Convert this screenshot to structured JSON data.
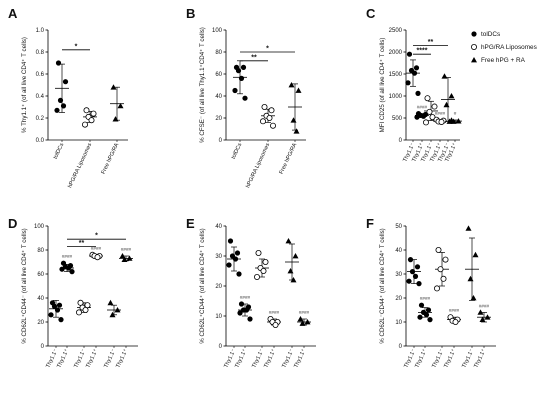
{
  "chart_data": [
    {
      "panel": "A",
      "type": "scatter",
      "ylabel": "% Thy1.1⁺ (of all live CD4⁺ T cells)",
      "ylim": [
        0,
        1.0
      ],
      "yticks": [
        "0.0",
        "0.2",
        "0.4",
        "0.6",
        "0.8",
        "1.0"
      ],
      "ytick_values": [
        0,
        0.2,
        0.4,
        0.6,
        0.8,
        1.0
      ],
      "categories": [
        "tolDCs",
        "hPG/RA Liposomes",
        "Free hPG/RA"
      ],
      "groups": [
        {
          "marker": "filled-circle",
          "mean": 0.47,
          "sd": 0.22,
          "points": [
            0.7,
            0.53,
            0.36,
            0.31,
            0.27
          ]
        },
        {
          "marker": "open-circle",
          "mean": 0.21,
          "sd": 0.05,
          "points": [
            0.27,
            0.24,
            0.21,
            0.18,
            0.14
          ]
        },
        {
          "marker": "filled-triangle",
          "mean": 0.33,
          "sd": 0.15,
          "points": [
            0.48,
            0.31,
            0.19
          ]
        }
      ],
      "brackets": [
        {
          "from": 0,
          "to": 1,
          "y": 0.82,
          "label": "*"
        }
      ]
    },
    {
      "panel": "B",
      "type": "scatter",
      "ylabel": "% CFSE⁻ (of all live Thy1.1⁺CD4⁺ T cells)",
      "ylim": [
        0,
        100
      ],
      "yticks": [
        "0",
        "20",
        "40",
        "60",
        "80",
        "100"
      ],
      "ytick_values": [
        0,
        20,
        40,
        60,
        80,
        100
      ],
      "categories": [
        "tolDCs",
        "hPG/RA Liposomes",
        "Free hPG/RA"
      ],
      "groups": [
        {
          "marker": "filled-circle",
          "mean": 57,
          "sd": 15,
          "points": [
            66,
            66,
            63,
            56,
            45,
            38
          ]
        },
        {
          "marker": "open-circle",
          "mean": 22,
          "sd": 6,
          "points": [
            30,
            27,
            22,
            20,
            17,
            13
          ]
        },
        {
          "marker": "filled-triangle",
          "mean": 30,
          "sd": 21,
          "points": [
            50,
            45,
            18,
            8
          ]
        }
      ],
      "brackets": [
        {
          "from": 0,
          "to": 1,
          "y": 72,
          "label": "**"
        },
        {
          "from": 0,
          "to": 2,
          "y": 80,
          "label": "*"
        }
      ]
    },
    {
      "panel": "C",
      "type": "scatter",
      "ylabel": "MFI CD25 (of all live CD4⁺ T cells)",
      "ylim": [
        0,
        2500
      ],
      "yticks": [
        "0",
        "500",
        "1000",
        "1500",
        "2000",
        "2500"
      ],
      "ytick_values": [
        0,
        500,
        1000,
        1500,
        2000,
        2500
      ],
      "categories": [
        "Thy1.1⁻",
        "Thy1.1⁺",
        "Thy1.1⁻",
        "Thy1.1⁺",
        "Thy1.1⁻",
        "Thy1.1⁺"
      ],
      "groups": [
        {
          "marker": "filled-circle",
          "mean": 1520,
          "sd": 300,
          "points": [
            1950,
            1640,
            1580,
            1520,
            1300,
            1060
          ],
          "hash": ""
        },
        {
          "marker": "filled-circle",
          "mean": 560,
          "sd": 40,
          "points": [
            600,
            580,
            560,
            540,
            520
          ],
          "hash": "####"
        },
        {
          "marker": "open-circle",
          "mean": 660,
          "sd": 220,
          "points": [
            950,
            760,
            640,
            520,
            400
          ],
          "hash": ""
        },
        {
          "marker": "open-circle",
          "mean": 430,
          "sd": 25,
          "points": [
            460,
            440,
            420,
            410
          ],
          "hash": "####"
        },
        {
          "marker": "filled-triangle",
          "mean": 920,
          "sd": 500,
          "points": [
            1450,
            1000,
            800,
            420
          ],
          "hash": ""
        },
        {
          "marker": "filled-triangle",
          "mean": 430,
          "sd": 25,
          "points": [
            450,
            430,
            420
          ],
          "hash": "#"
        }
      ],
      "brackets": [
        {
          "from": 0,
          "to": 2,
          "y": 1950,
          "label": "****"
        },
        {
          "from": 0,
          "to": 4,
          "y": 2150,
          "label": "**"
        }
      ],
      "legend": {
        "placement": "right",
        "entries": [
          {
            "marker": "filled-circle",
            "label": "tolDCs"
          },
          {
            "marker": "open-circle",
            "label": "hPG/RA Liposomes"
          },
          {
            "marker": "filled-triangle",
            "label": "Free hPG + RA"
          }
        ]
      }
    },
    {
      "panel": "D",
      "type": "scatter",
      "ylabel": "% CD62L⁺CD44⁻ (of all live CD4⁺ T cells)",
      "ylim": [
        0,
        100
      ],
      "yticks": [
        "0",
        "20",
        "40",
        "60",
        "80",
        "100"
      ],
      "ytick_values": [
        0,
        20,
        40,
        60,
        80,
        100
      ],
      "categories": [
        "Thy1.1⁻",
        "Thy1.1⁺",
        "Thy1.1⁻",
        "Thy1.1⁺",
        "Thy1.1⁻",
        "Thy1.1⁺"
      ],
      "groups": [
        {
          "marker": "filled-circle",
          "mean": 31,
          "sd": 7,
          "points": [
            36,
            34,
            33,
            30,
            26,
            22
          ],
          "hash": ""
        },
        {
          "marker": "filled-circle",
          "mean": 65,
          "sd": 3,
          "points": [
            69,
            67,
            66,
            65,
            64,
            62
          ],
          "hash": "####"
        },
        {
          "marker": "open-circle",
          "mean": 32,
          "sd": 4,
          "points": [
            36,
            34,
            32,
            30,
            28
          ],
          "hash": ""
        },
        {
          "marker": "open-circle",
          "mean": 75,
          "sd": 1,
          "points": [
            76,
            75,
            75,
            74
          ],
          "hash": "####"
        },
        {
          "marker": "filled-triangle",
          "mean": 30,
          "sd": 4,
          "points": [
            36,
            30,
            26
          ],
          "hash": ""
        },
        {
          "marker": "filled-triangle",
          "mean": 73,
          "sd": 2,
          "points": [
            75,
            73,
            72
          ],
          "hash": "####"
        }
      ],
      "brackets": [
        {
          "from": 1,
          "to": 3,
          "y": 83,
          "label": "**"
        },
        {
          "from": 1,
          "to": 5,
          "y": 89,
          "label": "*"
        }
      ]
    },
    {
      "panel": "E",
      "type": "scatter",
      "ylabel": "% CD62L⁺CD44⁺ (of all live CD4⁺ T cells)",
      "ylim": [
        0,
        40
      ],
      "yticks": [
        "0",
        "10",
        "20",
        "30",
        "40"
      ],
      "ytick_values": [
        0,
        10,
        20,
        30,
        40
      ],
      "categories": [
        "Thy1.1⁻",
        "Thy1.1⁺",
        "Thy1.1⁻",
        "Thy1.1⁺",
        "Thy1.1⁻",
        "Thy1.1⁺"
      ],
      "groups": [
        {
          "marker": "filled-circle",
          "mean": 29,
          "sd": 4,
          "points": [
            35,
            31,
            30,
            29,
            27,
            24
          ],
          "hash": ""
        },
        {
          "marker": "filled-circle",
          "mean": 12,
          "sd": 2,
          "points": [
            14,
            13,
            12,
            12,
            11,
            9
          ],
          "hash": "####"
        },
        {
          "marker": "open-circle",
          "mean": 26,
          "sd": 3,
          "points": [
            31,
            28,
            26,
            25,
            23
          ],
          "hash": ""
        },
        {
          "marker": "open-circle",
          "mean": 8,
          "sd": 1,
          "points": [
            9,
            8,
            8,
            7
          ],
          "hash": "####"
        },
        {
          "marker": "filled-triangle",
          "mean": 28,
          "sd": 6,
          "points": [
            35,
            30,
            25,
            22
          ],
          "hash": ""
        },
        {
          "marker": "filled-triangle",
          "mean": 8,
          "sd": 1,
          "points": [
            9,
            8,
            7.5
          ],
          "hash": "####"
        }
      ],
      "brackets": []
    },
    {
      "panel": "F",
      "type": "scatter",
      "ylabel": "% CD62L⁻CD44⁺ (of all live CD4⁺ T cells)",
      "ylim": [
        0,
        50
      ],
      "yticks": [
        "0",
        "10",
        "20",
        "30",
        "40",
        "50"
      ],
      "ytick_values": [
        0,
        10,
        20,
        30,
        40,
        50
      ],
      "categories": [
        "Thy1.1⁻",
        "Thy1.1⁺",
        "Thy1.1⁻",
        "Thy1.1⁺",
        "Thy1.1⁻",
        "Thy1.1⁺"
      ],
      "groups": [
        {
          "marker": "filled-circle",
          "mean": 31,
          "sd": 5,
          "points": [
            36,
            33,
            31,
            29,
            27,
            26
          ],
          "hash": ""
        },
        {
          "marker": "filled-circle",
          "mean": 14,
          "sd": 2,
          "points": [
            17,
            15,
            14,
            13,
            12,
            11
          ],
          "hash": "####"
        },
        {
          "marker": "open-circle",
          "mean": 32,
          "sd": 7,
          "points": [
            40,
            36,
            32,
            28,
            24
          ],
          "hash": ""
        },
        {
          "marker": "open-circle",
          "mean": 11,
          "sd": 1,
          "points": [
            12,
            11,
            10.5,
            10
          ],
          "hash": "####"
        },
        {
          "marker": "filled-triangle",
          "mean": 32,
          "sd": 13,
          "points": [
            49,
            38,
            28,
            20
          ],
          "hash": ""
        },
        {
          "marker": "filled-triangle",
          "mean": 12,
          "sd": 2,
          "points": [
            14,
            12,
            11
          ],
          "hash": "####"
        }
      ],
      "brackets": []
    }
  ]
}
